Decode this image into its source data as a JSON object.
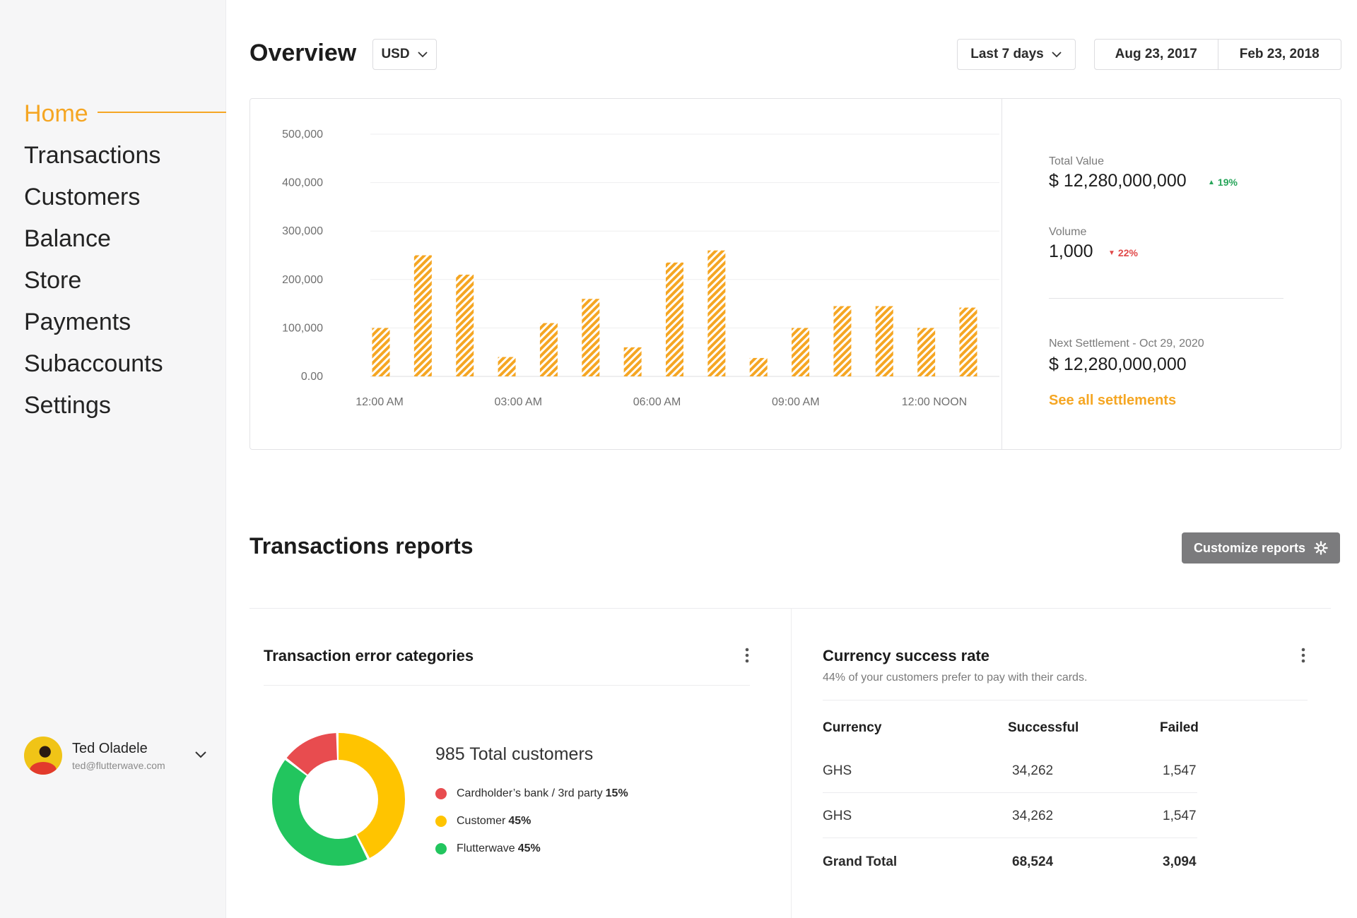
{
  "sidebar": {
    "nav": [
      "Home",
      "Transactions",
      "Customers",
      "Balance",
      "Store",
      "Payments",
      "Subaccounts",
      "Settings"
    ],
    "active": "Home",
    "user": {
      "name": "Ted Oladele",
      "email": "ted@flutterwave.com"
    }
  },
  "header": {
    "title": "Overview",
    "currency": "USD",
    "range": "Last 7 days",
    "date_from": "Aug 23, 2017",
    "date_to": "Feb 23, 2018"
  },
  "chart_data": {
    "type": "bar",
    "y_ticks": [
      "500,000",
      "400,000",
      "300,000",
      "200,000",
      "100,000",
      "0.00"
    ],
    "x_tick_labels": [
      "12:00 AM",
      "03:00 AM",
      "06:00 AM",
      "09:00 AM",
      "12:00 NOON"
    ],
    "values": [
      100000,
      250000,
      210000,
      40000,
      110000,
      160000,
      60000,
      235000,
      260000,
      38000,
      100000,
      145000,
      145000,
      100000,
      142000
    ],
    "ylim": [
      0,
      500000
    ],
    "grid": true,
    "bar_color": "#f5a623"
  },
  "stats": {
    "total_value_label": "Total Value",
    "total_value": "$ 12,280,000,000",
    "total_value_change": "19%",
    "volume_label": "Volume",
    "volume": "1,000",
    "volume_change": "22%",
    "settlement_label": "Next Settlement - Oct 29, 2020",
    "settlement_value": "$ 12,280,000,000",
    "see_all": "See all settlements"
  },
  "reports": {
    "title": "Transactions reports",
    "customize": "Customize reports",
    "error_panel": {
      "title": "Transaction error categories",
      "total": "985 Total customers",
      "legend": [
        {
          "label": "Cardholder’s bank / 3rd party",
          "value": "15%",
          "color": "#e84c4f",
          "fraction": 0.15
        },
        {
          "label": "Customer",
          "value": "45%",
          "color": "#ffc400",
          "fraction": 0.45
        },
        {
          "label": "Flutterwave",
          "value": "45%",
          "color": "#22c55e",
          "fraction": 0.45
        }
      ]
    },
    "currency_panel": {
      "title": "Currency success rate",
      "subtitle": "44% of your customers prefer to pay with their cards.",
      "headers": [
        "Currency",
        "Successful",
        "Failed"
      ],
      "rows": [
        [
          "GHS",
          "34,262",
          "1,547"
        ],
        [
          "GHS",
          "34,262",
          "1,547"
        ]
      ],
      "total": [
        "Grand Total",
        "68,524",
        "3,094"
      ]
    }
  },
  "colors": {
    "accent": "#f5a623",
    "up": "#27a55a",
    "down": "#e04848"
  }
}
